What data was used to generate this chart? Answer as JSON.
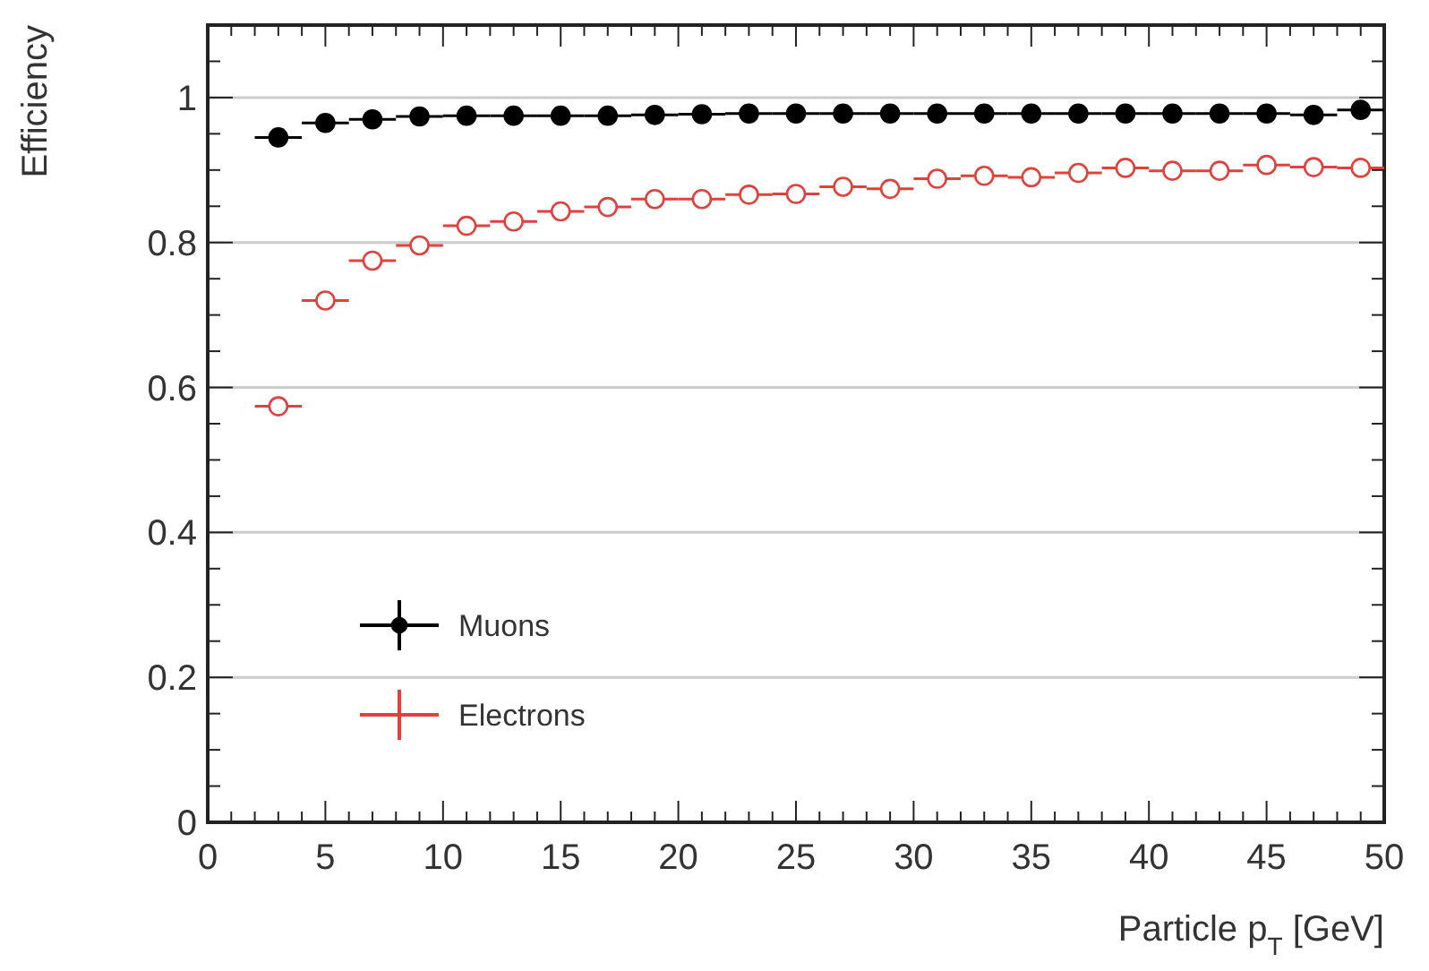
{
  "chart_data": {
    "type": "scatter",
    "xlabel": "Particle p$_{T}$ [GeV]",
    "ylabel": "Efficiency",
    "x": [
      3,
      5,
      7,
      9,
      11,
      13,
      15,
      17,
      19,
      21,
      23,
      25,
      27,
      29,
      31,
      33,
      35,
      37,
      39,
      41,
      43,
      45,
      47,
      49
    ],
    "series": [
      {
        "name": "Muons",
        "color": "#000000",
        "values": [
          0.945,
          0.965,
          0.97,
          0.974,
          0.975,
          0.975,
          0.975,
          0.975,
          0.976,
          0.977,
          0.978,
          0.978,
          0.978,
          0.978,
          0.978,
          0.978,
          0.978,
          0.978,
          0.978,
          0.978,
          0.978,
          0.978,
          0.976,
          0.983
        ],
        "xerrors": [
          1,
          1,
          1,
          1,
          1,
          1,
          1,
          1,
          1,
          1,
          1,
          1,
          1,
          1,
          1,
          1,
          1,
          1,
          1,
          1,
          1,
          1,
          1,
          1
        ]
      },
      {
        "name": "Electrons",
        "color": "#e0413a",
        "values": [
          0.574,
          0.72,
          0.775,
          0.796,
          0.823,
          0.829,
          0.843,
          0.849,
          0.86,
          0.86,
          0.866,
          0.867,
          0.877,
          0.874,
          0.888,
          0.892,
          0.89,
          0.896,
          0.903,
          0.899,
          0.899,
          0.907,
          0.904,
          0.903
        ],
        "xerrors": [
          1,
          1,
          1,
          1,
          1,
          1,
          1,
          1,
          1,
          1,
          1,
          1,
          1,
          1,
          1,
          1,
          1,
          1,
          1,
          1,
          1,
          1,
          1,
          1
        ]
      }
    ],
    "xlim": [
      0,
      50
    ],
    "xticks": [
      0,
      5,
      10,
      15,
      20,
      25,
      30,
      35,
      40,
      45,
      50
    ],
    "ylim": [
      0,
      1.1
    ],
    "yticks": [
      0,
      0.2,
      0.4,
      0.6,
      0.8,
      1
    ],
    "grid": "y",
    "legend": "bottom left",
    "marker": "circle"
  }
}
